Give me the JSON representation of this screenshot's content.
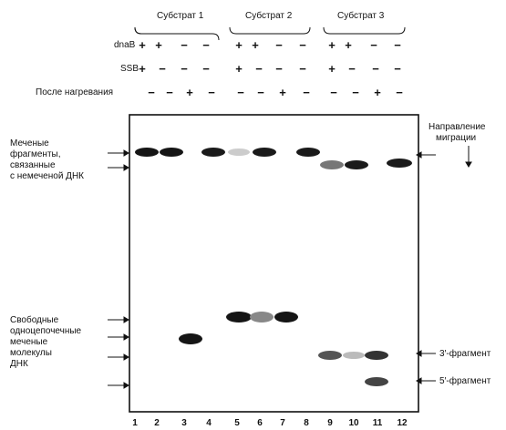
{
  "substrates": [
    "Субстрат 1",
    "Субстрат 2",
    "Субстрат 3"
  ],
  "row_labels": {
    "dnab": "dnaB",
    "ssb": "SSB",
    "heat": "После нагревания"
  },
  "rows": {
    "dnab": [
      "+",
      "+",
      "−",
      "−",
      "+",
      "+",
      "−",
      "−",
      "+",
      "+",
      "−",
      "−"
    ],
    "ssb": [
      "+",
      "−",
      "−",
      "−",
      "+",
      "−",
      "−",
      "−",
      "+",
      "−",
      "−",
      "−"
    ],
    "heat": [
      "−",
      "−",
      "+",
      "−",
      "−",
      "−",
      "+",
      "−",
      "−",
      "−",
      "+",
      "−"
    ]
  },
  "left_labels": {
    "bound": [
      "Меченые",
      "фрагменты,",
      "связанные",
      "с немеченой ДНК"
    ],
    "free": [
      "Свободные",
      "одноцепочечные",
      "меченые",
      "молекулы",
      "ДНК"
    ]
  },
  "migration_label": [
    "Направление",
    "миграции"
  ],
  "fragment_labels": {
    "three_prime": "3′-фрагмент",
    "five_prime": "5′-фрагмент"
  },
  "lanes": [
    "1",
    "2",
    "3",
    "4",
    "5",
    "6",
    "7",
    "8",
    "9",
    "10",
    "11",
    "12"
  ]
}
